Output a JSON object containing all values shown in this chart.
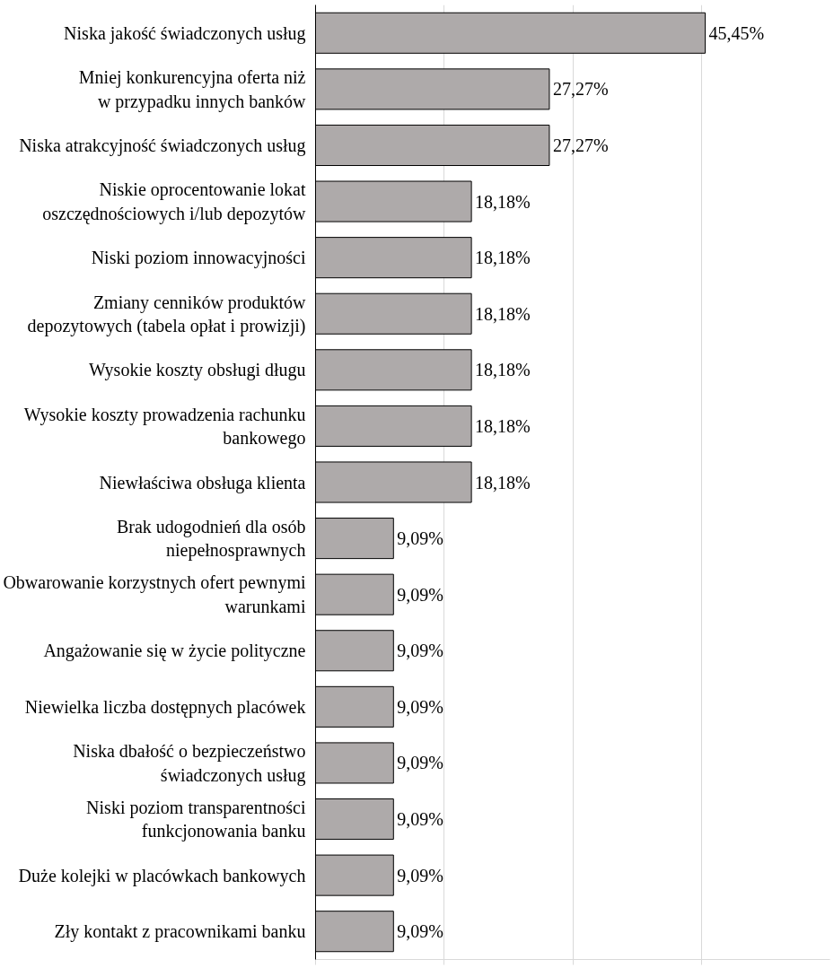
{
  "chart_data": {
    "type": "bar",
    "orientation": "horizontal",
    "categories": [
      "Niska jakość świadczonych usług",
      "Mniej konkurencyjna oferta niż\nw przypadku innych banków",
      "Niska atrakcyjność świadczonych usług",
      "Niskie oprocentowanie lokat\noszczędnościowych i/lub depozytów",
      "Niski poziom innowacyjności",
      "Zmiany cenników produktów\ndepozytowych (tabela opłat i prowizji)",
      "Wysokie koszty obsługi długu",
      "Wysokie koszty prowadzenia rachunku\nbankowego",
      "Niewłaściwa obsługa klienta",
      "Brak udogodnień dla osób\nniepełnosprawnych",
      "Obwarowanie korzystnych ofert pewnymi\nwarunkami",
      "Angażowanie się w życie polityczne",
      "Niewielka liczba dostępnych placówek",
      "Niska dbałość o bezpieczeństwo\nświadczonych usług",
      "Niski poziom transparentności\nfunkcjonowania banku",
      "Duże kolejki w placówkach bankowych",
      "Zły kontakt z pracownikami banku"
    ],
    "values": [
      45.45,
      27.27,
      27.27,
      18.18,
      18.18,
      18.18,
      18.18,
      18.18,
      18.18,
      9.09,
      9.09,
      9.09,
      9.09,
      9.09,
      9.09,
      9.09,
      9.09
    ],
    "value_labels": [
      "45,45%",
      "27,27%",
      "27,27%",
      "18,18%",
      "18,18%",
      "18,18%",
      "18,18%",
      "18,18%",
      "18,18%",
      "9,09%",
      "9,09%",
      "9,09%",
      "9,09%",
      "9,09%",
      "9,09%",
      "9,09%",
      "9,09%"
    ],
    "color": "#aeaaaa",
    "xlim": [
      0,
      60
    ],
    "xticks": [
      {
        "value": 0,
        "label": null
      },
      {
        "value": 15,
        "label": null
      },
      {
        "value": 30,
        "label": null
      },
      {
        "value": 45,
        "label": null
      }
    ],
    "grid": "x",
    "tick_labels": "y"
  }
}
